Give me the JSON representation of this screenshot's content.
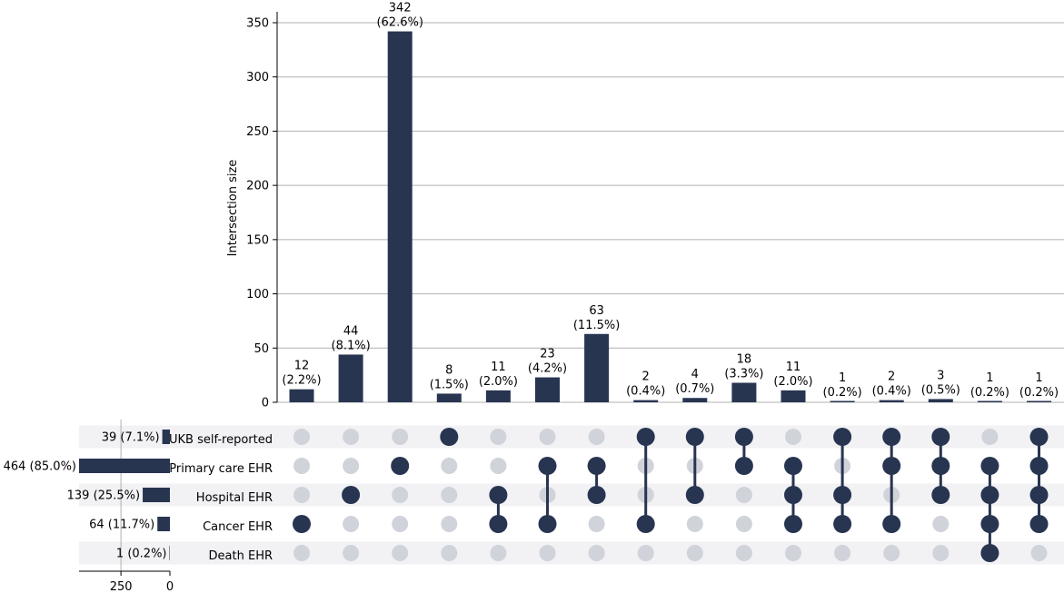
{
  "chart_data": {
    "type": "upset",
    "ylabel": "Intersection size",
    "ylim": [
      0,
      360
    ],
    "yticks": [
      0,
      50,
      100,
      150,
      200,
      250,
      300,
      350
    ],
    "grid": true,
    "colors": {
      "active": "#283551",
      "inactive": "#d0d3d9",
      "shade": "#f2f2f5",
      "grid": "#b0b0b0"
    },
    "sets": [
      {
        "name": "UKB self-reported",
        "size": 39,
        "label": "39 (7.1%)"
      },
      {
        "name": "Primary care EHR",
        "size": 464,
        "label": "464 (85.0%)"
      },
      {
        "name": "Hospital EHR",
        "size": 139,
        "label": "139 (25.5%)"
      },
      {
        "name": "Cancer EHR",
        "size": 64,
        "label": "64 (11.7%)"
      },
      {
        "name": "Death EHR",
        "size": 1,
        "label": "1 (0.2%)"
      }
    ],
    "set_size_xticks": [
      250,
      0
    ],
    "set_size_xlim": [
      0,
      464
    ],
    "intersections": [
      {
        "value": 12,
        "count_label": "12",
        "pct_label": "(2.2%)",
        "members": [
          3
        ]
      },
      {
        "value": 44,
        "count_label": "44",
        "pct_label": "(8.1%)",
        "members": [
          2
        ]
      },
      {
        "value": 342,
        "count_label": "342",
        "pct_label": "(62.6%)",
        "members": [
          1
        ]
      },
      {
        "value": 8,
        "count_label": "8",
        "pct_label": "(1.5%)",
        "members": [
          0
        ]
      },
      {
        "value": 11,
        "count_label": "11",
        "pct_label": "(2.0%)",
        "members": [
          2,
          3
        ]
      },
      {
        "value": 23,
        "count_label": "23",
        "pct_label": "(4.2%)",
        "members": [
          1,
          3
        ]
      },
      {
        "value": 63,
        "count_label": "63",
        "pct_label": "(11.5%)",
        "members": [
          1,
          2
        ]
      },
      {
        "value": 2,
        "count_label": "2",
        "pct_label": "(0.4%)",
        "members": [
          0,
          3
        ]
      },
      {
        "value": 4,
        "count_label": "4",
        "pct_label": "(0.7%)",
        "members": [
          0,
          2
        ]
      },
      {
        "value": 18,
        "count_label": "18",
        "pct_label": "(3.3%)",
        "members": [
          0,
          1
        ]
      },
      {
        "value": 11,
        "count_label": "11",
        "pct_label": "(2.0%)",
        "members": [
          1,
          2,
          3
        ]
      },
      {
        "value": 1,
        "count_label": "1",
        "pct_label": "(0.2%)",
        "members": [
          0,
          2,
          3
        ]
      },
      {
        "value": 2,
        "count_label": "2",
        "pct_label": "(0.4%)",
        "members": [
          0,
          1,
          3
        ]
      },
      {
        "value": 3,
        "count_label": "3",
        "pct_label": "(0.5%)",
        "members": [
          0,
          1,
          2
        ]
      },
      {
        "value": 1,
        "count_label": "1",
        "pct_label": "(0.2%)",
        "members": [
          1,
          2,
          3,
          4
        ]
      },
      {
        "value": 1,
        "count_label": "1",
        "pct_label": "(0.2%)",
        "members": [
          0,
          1,
          2,
          3
        ]
      }
    ]
  }
}
